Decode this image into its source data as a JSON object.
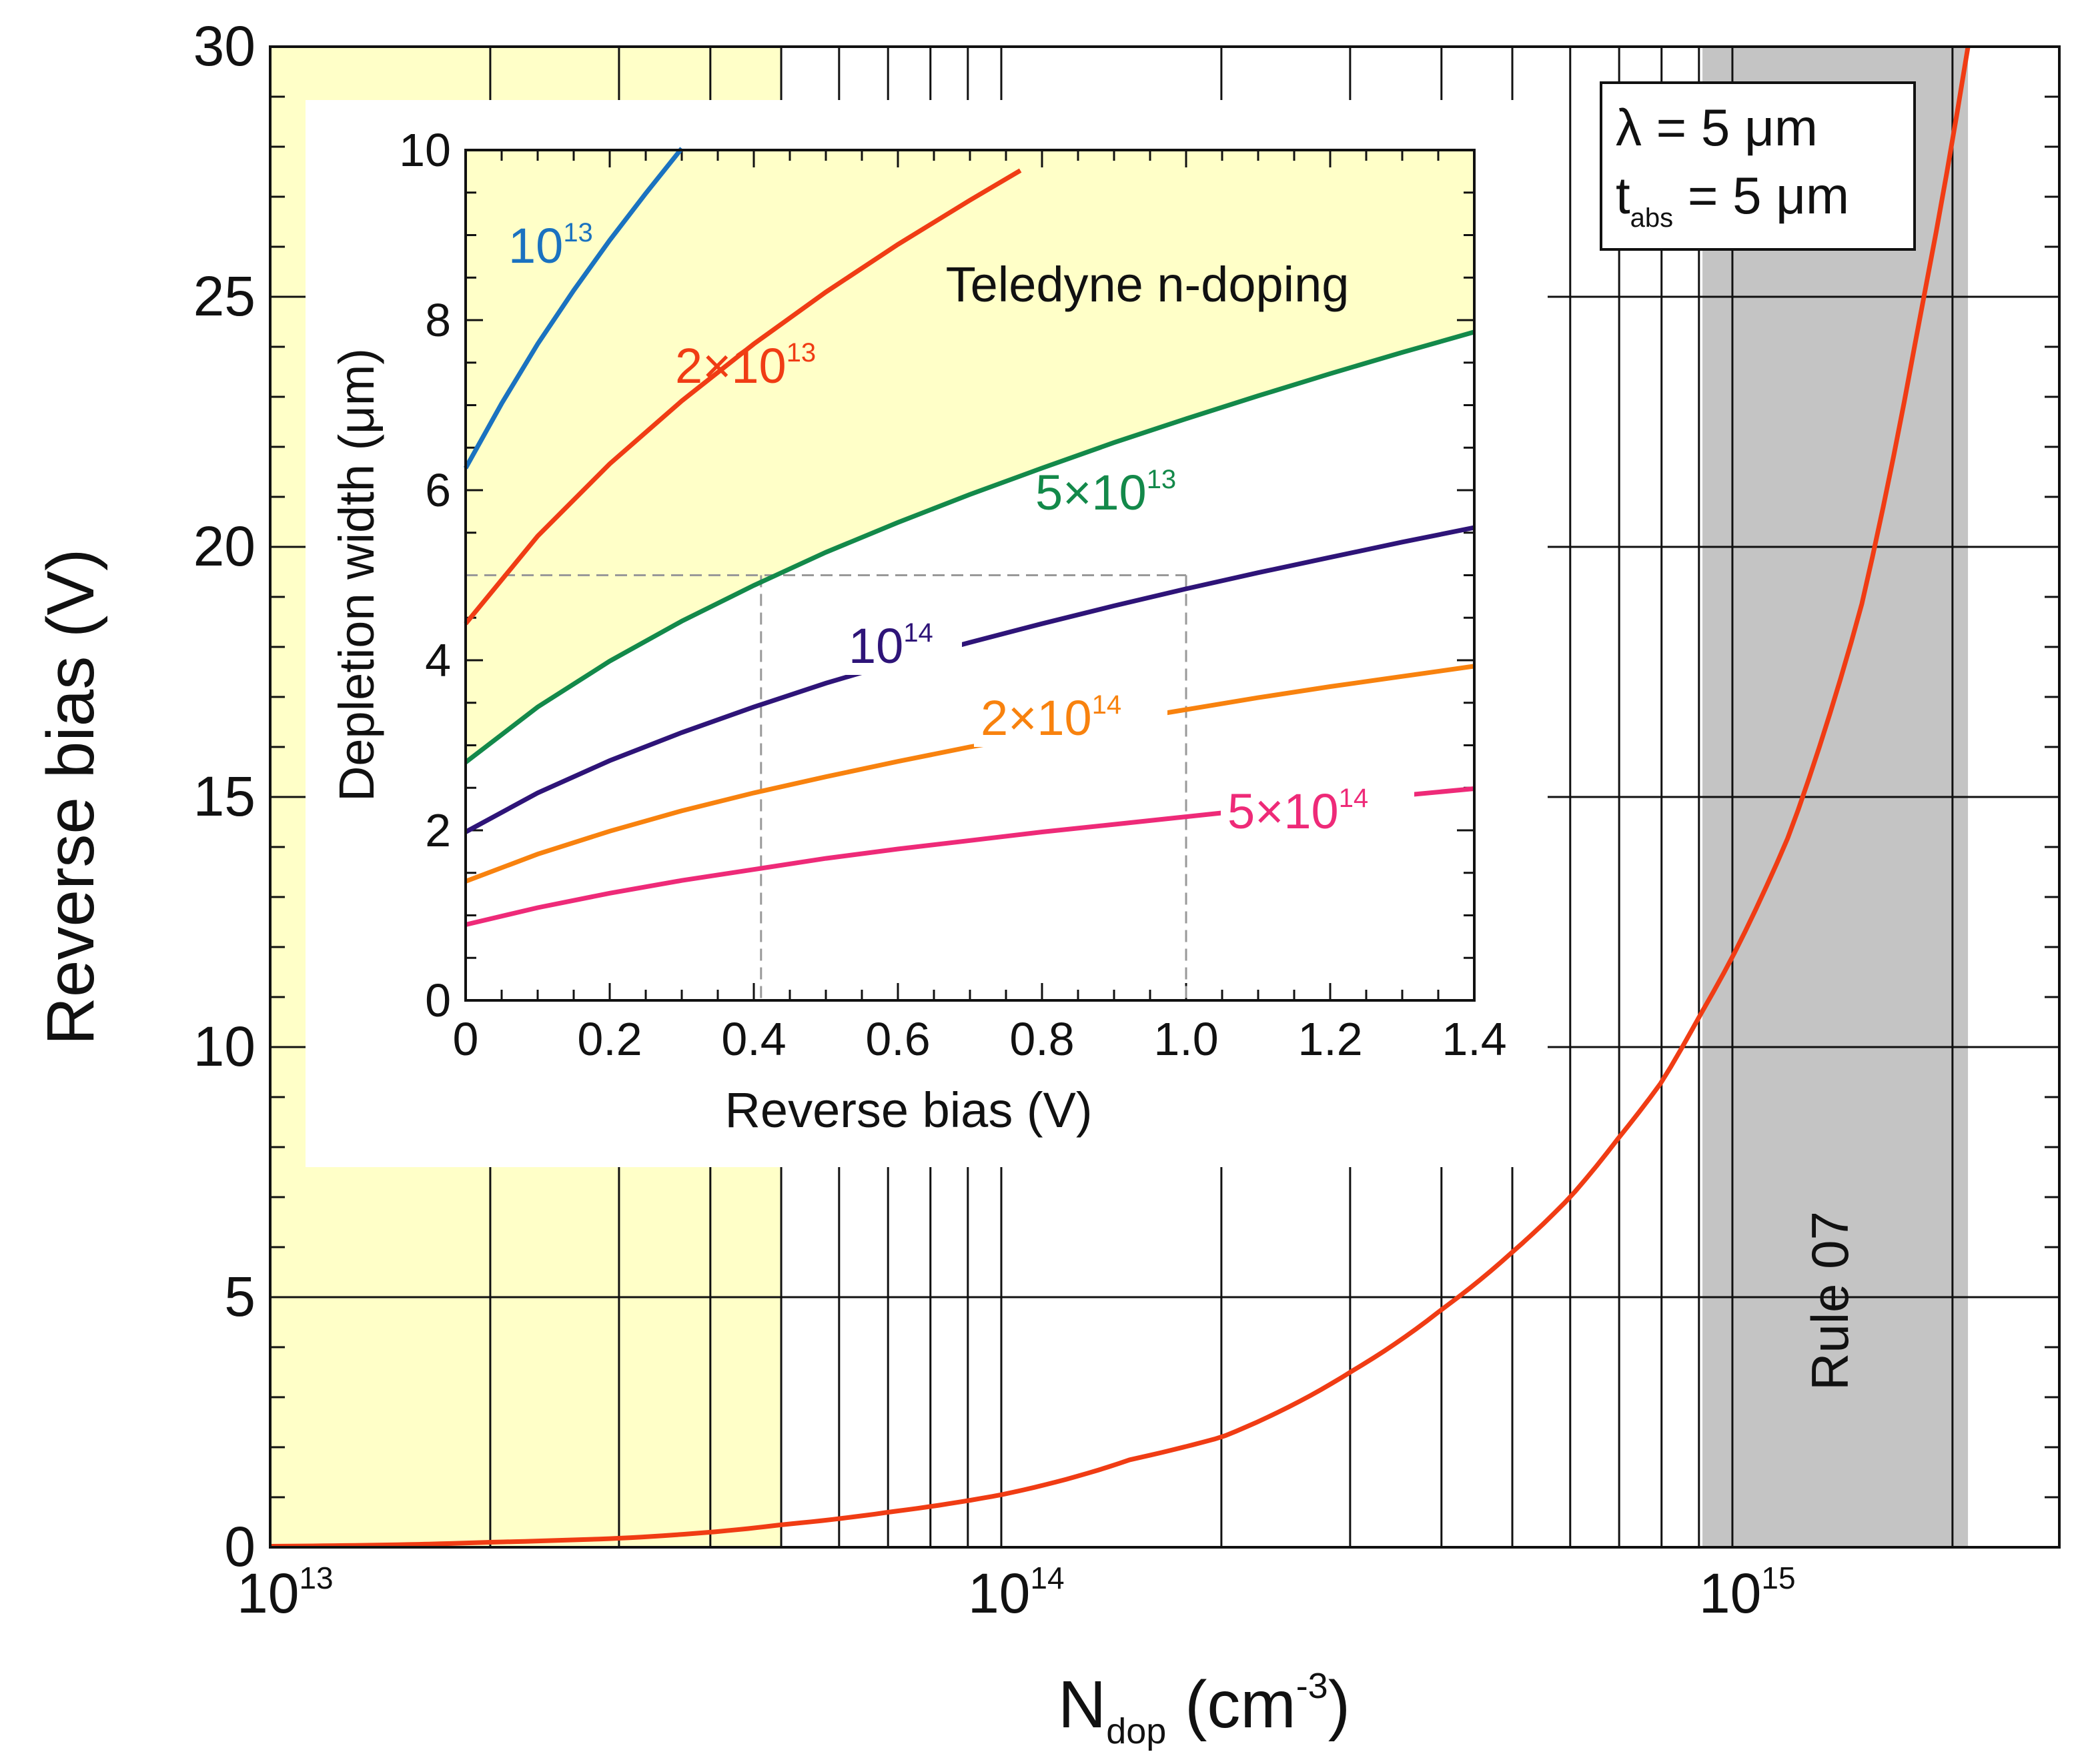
{
  "chart_data": [
    {
      "type": "line",
      "name": "main",
      "xscale": "log",
      "xlim": [
        10000000000000.0,
        2800000000000000.0
      ],
      "ylim": [
        0,
        30
      ],
      "xlabel": {
        "main": "N",
        "sub": "dop",
        "rest_open": " (cm",
        "sup": "-3",
        "rest_close": ")"
      },
      "ylabel": "Reverse bias (V)",
      "xticks": [
        {
          "value": 10000000000000.0,
          "base": "10",
          "exp": "13"
        },
        {
          "value": 100000000000000.0,
          "base": "10",
          "exp": "14"
        },
        {
          "value": 1000000000000000.0,
          "base": "10",
          "exp": "15"
        }
      ],
      "yticks": [
        "0",
        "5",
        "10",
        "15",
        "20",
        "25",
        "30"
      ],
      "grid": true,
      "shaded_regions": [
        {
          "name": "teledyne-region",
          "x": [
            10000000000000.0,
            50000000000000.0
          ],
          "color": "#ffffc8"
        },
        {
          "name": "rule07-region",
          "x": [
            910000000000000.0,
            2100000000000000.0
          ],
          "color": "#c4c4c4",
          "label": "Rule 07"
        }
      ],
      "series": [
        {
          "name": "reverse bias vs doping",
          "color": "#f03c14",
          "x": [
            10000000000000.0,
            20000000000000.0,
            30000000000000.0,
            50000000000000.0,
            70000000000000.0,
            100000000000000.0,
            150000000000000.0,
            200000000000000.0,
            300000000000000.0,
            400000000000000.0,
            500000000000000.0,
            600000000000000.0,
            700000000000000.0,
            800000000000000.0,
            900000000000000.0,
            1000000000000000.0,
            1200000000000000.0,
            1500000000000000.0,
            1800000000000000.0,
            2100000000000000.0
          ],
          "y": [
            0.02,
            0.1,
            0.18,
            0.45,
            0.7,
            1.05,
            1.75,
            2.2,
            3.5,
            4.75,
            5.9,
            7.0,
            8.2,
            9.3,
            10.6,
            11.8,
            14.3,
            18.8,
            24.5,
            30.0
          ]
        }
      ],
      "legend_box": {
        "lambda_symbol": "λ",
        "lambda_text": " = 5 μm",
        "t_main": "t",
        "t_sub": "abs",
        "t_text": " = 5 μm"
      }
    },
    {
      "type": "line",
      "name": "inset",
      "xlim": [
        0,
        1.4
      ],
      "ylim": [
        0,
        10
      ],
      "xlabel": "Reverse bias (V)",
      "ylabel": "Depletion width (μm)",
      "xticks": [
        "0",
        "0.2",
        "0.4",
        "0.6",
        "0.8",
        "1.0",
        "1.2",
        "1.4"
      ],
      "yticks": [
        "0",
        "2",
        "4",
        "6",
        "8",
        "10"
      ],
      "region_label": "Teledyne n-doping",
      "region_color": "#ffffc8",
      "guides": {
        "y": 5.0,
        "x": [
          0.41,
          1.0
        ]
      },
      "series": [
        {
          "name": "10^13",
          "label_base": "10",
          "label_exp": "13",
          "color": "#1a72c0",
          "x": [
            0,
            0.05,
            0.1,
            0.15,
            0.2,
            0.25,
            0.3
          ],
          "y": [
            6.26,
            7.02,
            7.72,
            8.35,
            8.94,
            9.49,
            10.02
          ]
        },
        {
          "name": "2x10^13",
          "label_base": "2×10",
          "label_exp": "13",
          "color": "#f03c14",
          "x": [
            0,
            0.1,
            0.2,
            0.3,
            0.4,
            0.5,
            0.6,
            0.7,
            0.77
          ],
          "y": [
            4.43,
            5.46,
            6.31,
            7.05,
            7.72,
            8.33,
            8.89,
            9.41,
            9.76
          ]
        },
        {
          "name": "5x10^13",
          "label_base": "5×10",
          "label_exp": "13",
          "color": "#13894a",
          "x": [
            0,
            0.1,
            0.2,
            0.3,
            0.4,
            0.5,
            0.6,
            0.7,
            0.8,
            0.9,
            1.0,
            1.1,
            1.2,
            1.3,
            1.4
          ],
          "y": [
            2.8,
            3.45,
            3.99,
            4.46,
            4.88,
            5.27,
            5.62,
            5.95,
            6.26,
            6.56,
            6.84,
            7.11,
            7.37,
            7.62,
            7.86
          ]
        },
        {
          "name": "10^14",
          "label_base": "10",
          "label_exp": "14",
          "color": "#2e1478",
          "x": [
            0,
            0.1,
            0.2,
            0.3,
            0.4,
            0.5,
            0.6,
            0.7,
            0.8,
            0.9,
            1.0,
            1.1,
            1.2,
            1.3,
            1.4
          ],
          "y": [
            1.98,
            2.44,
            2.82,
            3.15,
            3.45,
            3.73,
            3.98,
            4.21,
            4.43,
            4.64,
            4.84,
            5.03,
            5.21,
            5.39,
            5.56
          ]
        },
        {
          "name": "2x10^14",
          "label_base": "2×10",
          "label_exp": "14",
          "color": "#f8820e",
          "x": [
            0,
            0.1,
            0.2,
            0.3,
            0.4,
            0.5,
            0.6,
            0.7,
            0.8,
            0.9,
            1.0,
            1.1,
            1.2,
            1.3,
            1.4
          ],
          "y": [
            1.4,
            1.72,
            1.99,
            2.23,
            2.44,
            2.63,
            2.81,
            2.98,
            3.13,
            3.28,
            3.42,
            3.56,
            3.69,
            3.81,
            3.93
          ]
        },
        {
          "name": "5x10^14",
          "label_base": "5×10",
          "label_exp": "14",
          "color": "#ee2a78",
          "x": [
            0,
            0.1,
            0.2,
            0.3,
            0.4,
            0.5,
            0.6,
            0.7,
            0.8,
            0.9,
            1.0,
            1.1,
            1.2,
            1.3,
            1.4
          ],
          "y": [
            0.89,
            1.09,
            1.26,
            1.41,
            1.54,
            1.67,
            1.78,
            1.88,
            1.98,
            2.07,
            2.16,
            2.25,
            2.33,
            2.41,
            2.49
          ]
        }
      ]
    }
  ]
}
